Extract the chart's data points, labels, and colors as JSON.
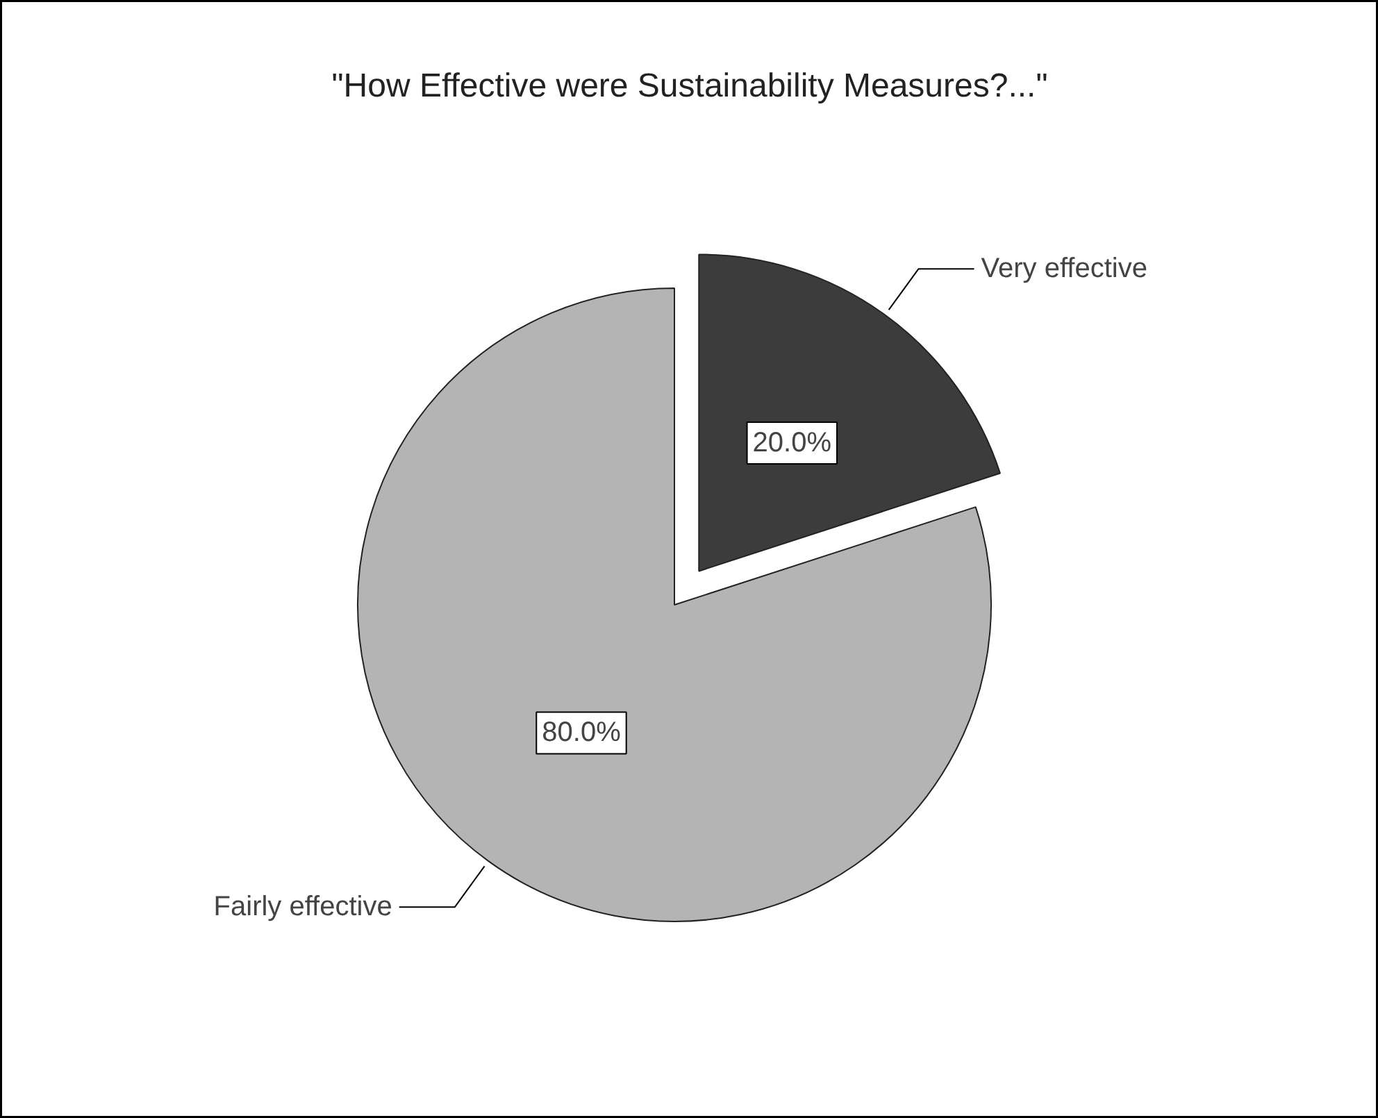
{
  "chart_data": {
    "type": "pie",
    "title": "\"How Effective were Sustainability Measures?...\"",
    "categories": [
      "Very effective",
      "Fairly effective"
    ],
    "values": [
      20,
      80
    ],
    "colors": [
      "#3c3c3c",
      "#b4b4b4"
    ],
    "value_labels": [
      "20.0%",
      "80.0%"
    ]
  }
}
